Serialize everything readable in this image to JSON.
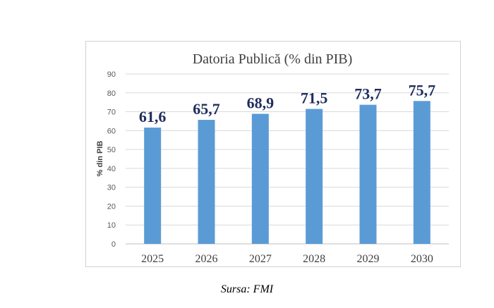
{
  "chart_data": {
    "type": "bar",
    "title": "Datoria Publică (% din PIB)",
    "xlabel": "",
    "ylabel": "% din PIB",
    "categories": [
      "2025",
      "2026",
      "2027",
      "2028",
      "2029",
      "2030"
    ],
    "values": [
      61.6,
      65.7,
      68.9,
      71.5,
      73.7,
      75.7
    ],
    "data_labels": [
      "61,6",
      "65,7",
      "68,9",
      "71,5",
      "73,7",
      "75,7"
    ],
    "y_ticks": [
      "0",
      "10",
      "20",
      "30",
      "40",
      "50",
      "60",
      "70",
      "80",
      "90"
    ],
    "ylim": [
      0,
      90
    ],
    "grid": true,
    "legend": "none",
    "colors": {
      "bar": "#5b9bd5",
      "data_label": "#1f2d5c",
      "grid": "#d9d9d9"
    }
  },
  "source_note": "Sursa: FMI"
}
